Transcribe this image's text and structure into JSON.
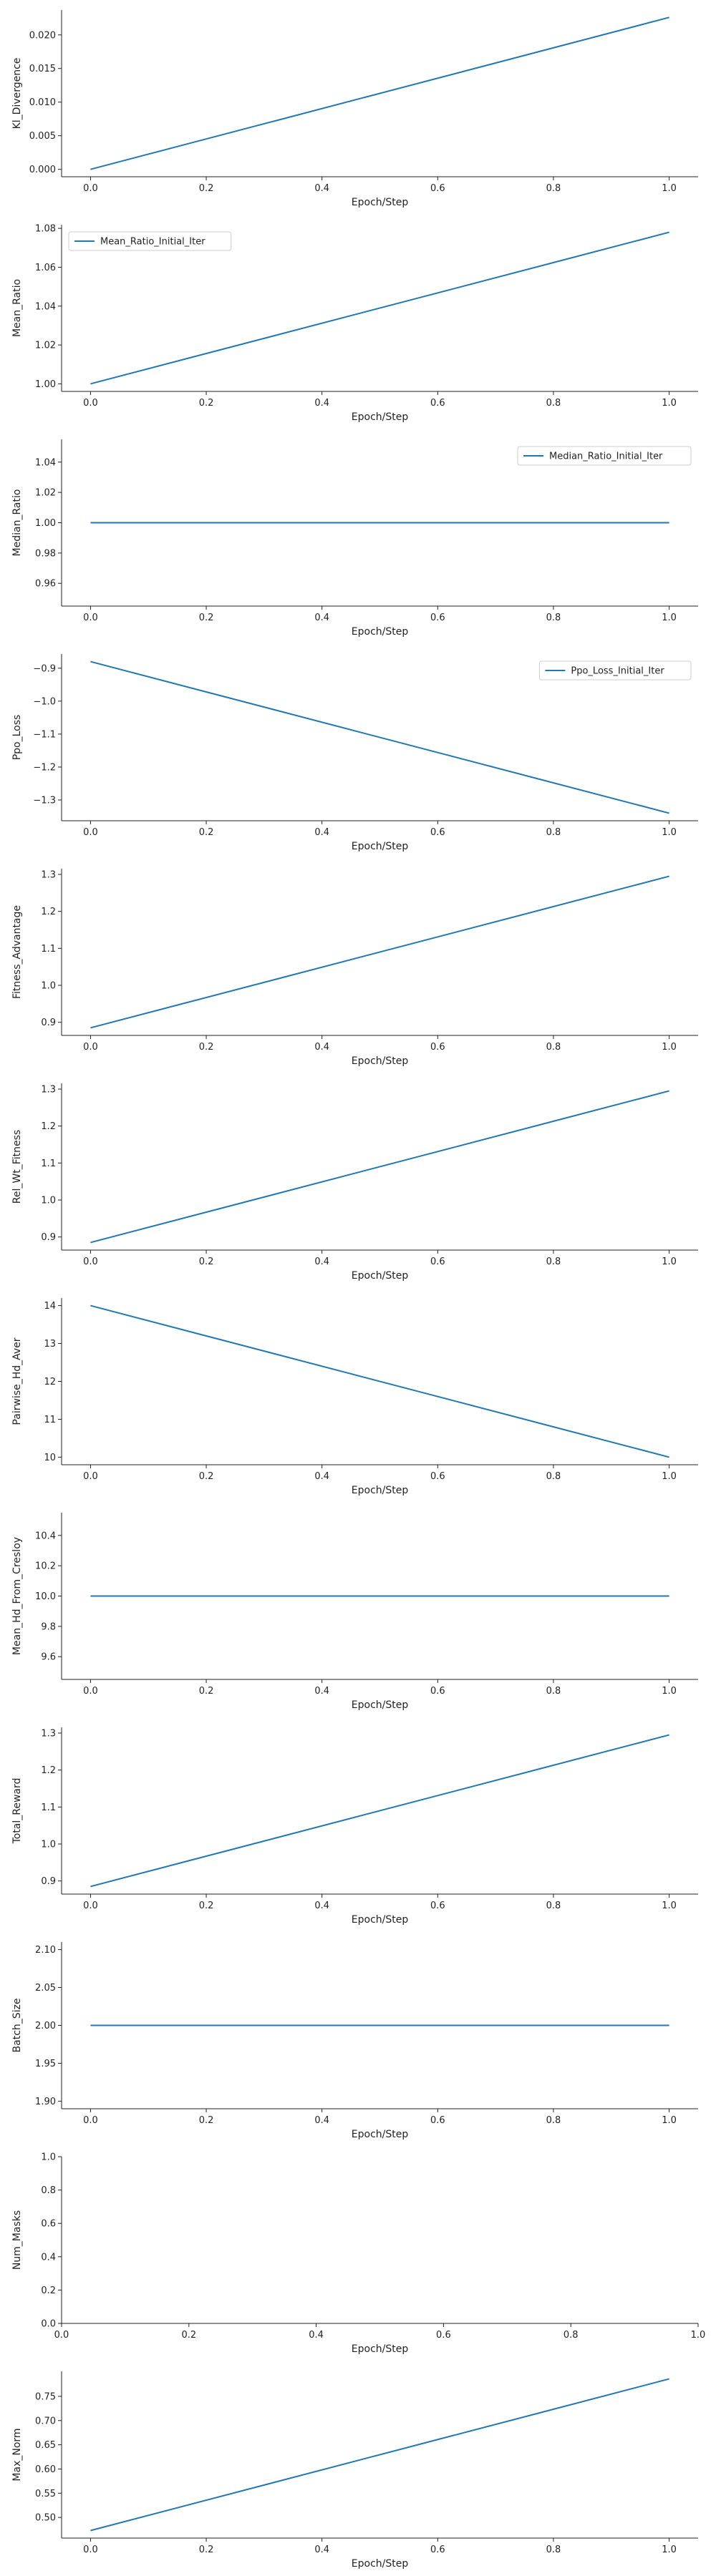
{
  "colors": {
    "series": "#1f77b4",
    "axis": "#222222"
  },
  "chart_data": [
    {
      "type": "line",
      "ylabel": "Kl_Divergence",
      "xlabel": "Epoch/Step",
      "legend": null,
      "x": [
        0,
        1
      ],
      "y": [
        0.0,
        0.0226
      ],
      "xlim": [
        -0.05,
        1.05
      ],
      "ylim": [
        -0.0011,
        0.0237
      ],
      "xticks": [
        0.0,
        0.2,
        0.4,
        0.6,
        0.8,
        1.0
      ],
      "yticks": [
        0.0,
        0.005,
        0.01,
        0.015,
        0.02
      ],
      "xtick_labels": [
        "0.0",
        "0.2",
        "0.4",
        "0.6",
        "0.8",
        "1.0"
      ],
      "ytick_labels": [
        "0.000",
        "0.005",
        "0.010",
        "0.015",
        "0.020"
      ]
    },
    {
      "type": "line",
      "ylabel": "Mean_Ratio",
      "xlabel": "Epoch/Step",
      "legend": "Mean_Ratio_Initial_Iter",
      "legend_loc": "top-left",
      "x": [
        0,
        1
      ],
      "y": [
        1.0,
        1.078
      ],
      "xlim": [
        -0.05,
        1.05
      ],
      "ylim": [
        0.9961,
        1.0819
      ],
      "xticks": [
        0.0,
        0.2,
        0.4,
        0.6,
        0.8,
        1.0
      ],
      "yticks": [
        1.0,
        1.02,
        1.04,
        1.06,
        1.08
      ],
      "xtick_labels": [
        "0.0",
        "0.2",
        "0.4",
        "0.6",
        "0.8",
        "1.0"
      ],
      "ytick_labels": [
        "1.00",
        "1.02",
        "1.04",
        "1.06",
        "1.08"
      ]
    },
    {
      "type": "line",
      "ylabel": "Median_Ratio",
      "xlabel": "Epoch/Step",
      "legend": "Median_Ratio_Initial_Iter",
      "legend_loc": "top-right",
      "x": [
        0,
        1
      ],
      "y": [
        1.0,
        1.0
      ],
      "xlim": [
        -0.05,
        1.05
      ],
      "ylim": [
        0.945,
        1.055
      ],
      "xticks": [
        0.0,
        0.2,
        0.4,
        0.6,
        0.8,
        1.0
      ],
      "yticks": [
        0.96,
        0.98,
        1.0,
        1.02,
        1.04
      ],
      "xtick_labels": [
        "0.0",
        "0.2",
        "0.4",
        "0.6",
        "0.8",
        "1.0"
      ],
      "ytick_labels": [
        "0.96",
        "0.98",
        "1.00",
        "1.02",
        "1.04"
      ]
    },
    {
      "type": "line",
      "ylabel": "Ppo_Loss",
      "xlabel": "Epoch/Step",
      "legend": "Ppo_Loss_Initial_Iter",
      "legend_loc": "top-right",
      "x": [
        0,
        1
      ],
      "y": [
        -0.88,
        -1.34
      ],
      "xlim": [
        -0.05,
        1.05
      ],
      "ylim": [
        -1.363,
        -0.857
      ],
      "xticks": [
        0.0,
        0.2,
        0.4,
        0.6,
        0.8,
        1.0
      ],
      "yticks": [
        -0.9,
        -1.0,
        -1.1,
        -1.2,
        -1.3
      ],
      "xtick_labels": [
        "0.0",
        "0.2",
        "0.4",
        "0.6",
        "0.8",
        "1.0"
      ],
      "ytick_labels": [
        "−0.9",
        "−1.0",
        "−1.1",
        "−1.2",
        "−1.3"
      ]
    },
    {
      "type": "line",
      "ylabel": "Fitness_Advantage",
      "xlabel": "Epoch/Step",
      "legend": null,
      "x": [
        0,
        1
      ],
      "y": [
        0.885,
        1.295
      ],
      "xlim": [
        -0.05,
        1.05
      ],
      "ylim": [
        0.8645,
        1.3155
      ],
      "xticks": [
        0.0,
        0.2,
        0.4,
        0.6,
        0.8,
        1.0
      ],
      "yticks": [
        0.9,
        1.0,
        1.1,
        1.2,
        1.3
      ],
      "xtick_labels": [
        "0.0",
        "0.2",
        "0.4",
        "0.6",
        "0.8",
        "1.0"
      ],
      "ytick_labels": [
        "0.9",
        "1.0",
        "1.1",
        "1.2",
        "1.3"
      ]
    },
    {
      "type": "line",
      "ylabel": "Rel_Wt_Fitness",
      "xlabel": "Epoch/Step",
      "legend": null,
      "x": [
        0,
        1
      ],
      "y": [
        0.885,
        1.295
      ],
      "xlim": [
        -0.05,
        1.05
      ],
      "ylim": [
        0.8645,
        1.3155
      ],
      "xticks": [
        0.0,
        0.2,
        0.4,
        0.6,
        0.8,
        1.0
      ],
      "yticks": [
        0.9,
        1.0,
        1.1,
        1.2,
        1.3
      ],
      "xtick_labels": [
        "0.0",
        "0.2",
        "0.4",
        "0.6",
        "0.8",
        "1.0"
      ],
      "ytick_labels": [
        "0.9",
        "1.0",
        "1.1",
        "1.2",
        "1.3"
      ]
    },
    {
      "type": "line",
      "ylabel": "Pairwise_Hd_Aver",
      "xlabel": "Epoch/Step",
      "legend": null,
      "x": [
        0,
        1
      ],
      "y": [
        14.0,
        10.0
      ],
      "xlim": [
        -0.05,
        1.05
      ],
      "ylim": [
        9.8,
        14.2
      ],
      "xticks": [
        0.0,
        0.2,
        0.4,
        0.6,
        0.8,
        1.0
      ],
      "yticks": [
        10,
        11,
        12,
        13,
        14
      ],
      "xtick_labels": [
        "0.0",
        "0.2",
        "0.4",
        "0.6",
        "0.8",
        "1.0"
      ],
      "ytick_labels": [
        "10",
        "11",
        "12",
        "13",
        "14"
      ]
    },
    {
      "type": "line",
      "ylabel": "Mean_Hd_From_Cresloy",
      "xlabel": "Epoch/Step",
      "legend": null,
      "x": [
        0,
        1
      ],
      "y": [
        10.0,
        10.0
      ],
      "xlim": [
        -0.05,
        1.05
      ],
      "ylim": [
        9.45,
        10.55
      ],
      "xticks": [
        0.0,
        0.2,
        0.4,
        0.6,
        0.8,
        1.0
      ],
      "yticks": [
        9.6,
        9.8,
        10.0,
        10.2,
        10.4
      ],
      "xtick_labels": [
        "0.0",
        "0.2",
        "0.4",
        "0.6",
        "0.8",
        "1.0"
      ],
      "ytick_labels": [
        "9.6",
        "9.8",
        "10.0",
        "10.2",
        "10.4"
      ]
    },
    {
      "type": "line",
      "ylabel": "Total_Reward",
      "xlabel": "Epoch/Step",
      "legend": null,
      "x": [
        0,
        1
      ],
      "y": [
        0.885,
        1.295
      ],
      "xlim": [
        -0.05,
        1.05
      ],
      "ylim": [
        0.8645,
        1.3155
      ],
      "xticks": [
        0.0,
        0.2,
        0.4,
        0.6,
        0.8,
        1.0
      ],
      "yticks": [
        0.9,
        1.0,
        1.1,
        1.2,
        1.3
      ],
      "xtick_labels": [
        "0.0",
        "0.2",
        "0.4",
        "0.6",
        "0.8",
        "1.0"
      ],
      "ytick_labels": [
        "0.9",
        "1.0",
        "1.1",
        "1.2",
        "1.3"
      ]
    },
    {
      "type": "line",
      "ylabel": "Batch_Size",
      "xlabel": "Epoch/Step",
      "legend": null,
      "x": [
        0,
        1
      ],
      "y": [
        2.0,
        2.0
      ],
      "xlim": [
        -0.05,
        1.05
      ],
      "ylim": [
        1.89,
        2.11
      ],
      "xticks": [
        0.0,
        0.2,
        0.4,
        0.6,
        0.8,
        1.0
      ],
      "yticks": [
        1.9,
        1.95,
        2.0,
        2.05,
        2.1
      ],
      "xtick_labels": [
        "0.0",
        "0.2",
        "0.4",
        "0.6",
        "0.8",
        "1.0"
      ],
      "ytick_labels": [
        "1.90",
        "1.95",
        "2.00",
        "2.05",
        "2.10"
      ]
    },
    {
      "type": "line",
      "ylabel": "Num_Masks",
      "xlabel": "Epoch/Step",
      "legend": null,
      "x": [],
      "y": [],
      "xlim": [
        0.0,
        1.0
      ],
      "ylim": [
        0.0,
        1.0
      ],
      "xticks": [
        0.0,
        0.2,
        0.4,
        0.6,
        0.8,
        1.0
      ],
      "yticks": [
        0.0,
        0.2,
        0.4,
        0.6,
        0.8,
        1.0
      ],
      "xtick_labels": [
        "0.0",
        "0.2",
        "0.4",
        "0.6",
        "0.8",
        "1.0"
      ],
      "ytick_labels": [
        "0.0",
        "0.2",
        "0.4",
        "0.6",
        "0.8",
        "1.0"
      ]
    },
    {
      "type": "line",
      "ylabel": "Max_Norm",
      "xlabel": "Epoch/Step",
      "legend": null,
      "x": [
        0,
        1
      ],
      "y": [
        0.473,
        0.786
      ],
      "xlim": [
        -0.05,
        1.05
      ],
      "ylim": [
        0.4574,
        0.8016
      ],
      "xticks": [
        0.0,
        0.2,
        0.4,
        0.6,
        0.8,
        1.0
      ],
      "yticks": [
        0.5,
        0.55,
        0.6,
        0.65,
        0.7,
        0.75
      ],
      "xtick_labels": [
        "0.0",
        "0.2",
        "0.4",
        "0.6",
        "0.8",
        "1.0"
      ],
      "ytick_labels": [
        "0.50",
        "0.55",
        "0.60",
        "0.65",
        "0.70",
        "0.75"
      ]
    }
  ]
}
